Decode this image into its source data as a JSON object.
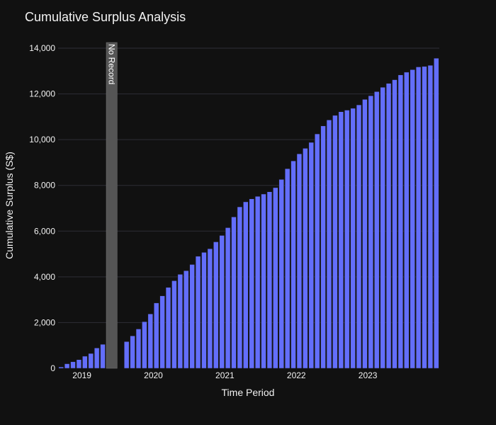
{
  "chart_data": {
    "type": "bar",
    "title": "Cumulative Surplus Analysis",
    "xlabel": "Time Period",
    "ylabel": "Cumulative Surplus (S$)",
    "ylim": [
      0,
      14000
    ],
    "y_ticks": [
      0,
      2000,
      4000,
      6000,
      8000,
      10000,
      12000,
      14000
    ],
    "y_tick_labels": [
      "0",
      "2,000",
      "4,000",
      "6,000",
      "8,000",
      "10,000",
      "12,000",
      "14,000"
    ],
    "x_ticks": [
      {
        "label": "2019",
        "index": 3.5
      },
      {
        "label": "2020",
        "index": 15.5
      },
      {
        "label": "2021",
        "index": 27.5
      },
      {
        "label": "2022",
        "index": 39.5
      },
      {
        "label": "2023",
        "index": 51.5
      }
    ],
    "series": [
      {
        "name": "Cumulative Surplus",
        "values": [
          60,
          200,
          290,
          380,
          530,
          650,
          890,
          1050,
          null,
          null,
          null,
          1170,
          1420,
          1720,
          2040,
          2380,
          2860,
          3170,
          3540,
          3830,
          4110,
          4270,
          4540,
          4900,
          5070,
          5230,
          5530,
          5810,
          6150,
          6620,
          7060,
          7280,
          7410,
          7520,
          7620,
          7720,
          7900,
          8260,
          8730,
          9070,
          9380,
          9620,
          9880,
          10250,
          10600,
          10860,
          11060,
          11220,
          11290,
          11370,
          11520,
          11760,
          11920,
          12100,
          12290,
          12460,
          12620,
          12830,
          12950,
          13060,
          13180,
          13200,
          13250,
          13560
        ]
      }
    ],
    "shaded_region": {
      "start_index": 8,
      "end_index": 9,
      "label": "No Record",
      "color": "#555555"
    },
    "colors": {
      "bar": "#636efa",
      "background": "#111111",
      "grid": "#2e2e36"
    }
  }
}
